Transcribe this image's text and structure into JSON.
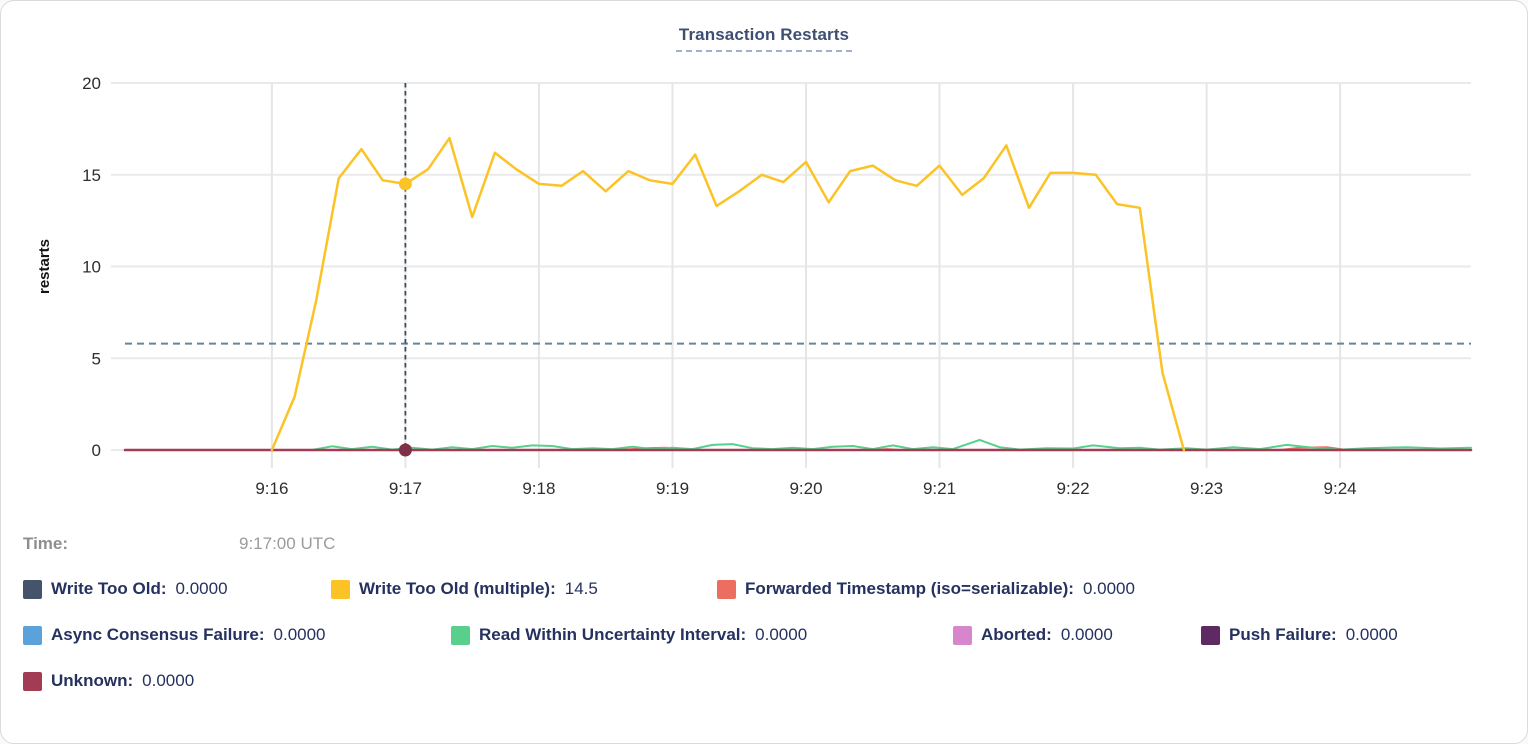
{
  "title": "Transaction Restarts",
  "tooltip": {
    "time_label": "Time:",
    "time_value": "9:17:00 UTC"
  },
  "chart_data": {
    "type": "line",
    "title": "Transaction Restarts",
    "xlabel": "",
    "ylabel": "restarts",
    "ylim": [
      0,
      20
    ],
    "yticks": [
      0,
      5,
      10,
      15,
      20
    ],
    "x_range_minutes": [
      14.9,
      24.98
    ],
    "xticks": [
      {
        "t": 16,
        "label": "9:16"
      },
      {
        "t": 17,
        "label": "9:17"
      },
      {
        "t": 18,
        "label": "9:18"
      },
      {
        "t": 19,
        "label": "9:19"
      },
      {
        "t": 20,
        "label": "9:20"
      },
      {
        "t": 21,
        "label": "9:21"
      },
      {
        "t": 22,
        "label": "9:22"
      },
      {
        "t": 23,
        "label": "9:23"
      },
      {
        "t": 24,
        "label": "9:24"
      }
    ],
    "grid": true,
    "legend_position": "bottom",
    "threshold_value": 5.8,
    "crosshair": {
      "t": 17.0,
      "time_label": "9:17:00 UTC",
      "dots": [
        {
          "value": 14.5,
          "color": "#fcc326"
        },
        {
          "value": 0,
          "color": "#7c3146"
        }
      ]
    },
    "series": [
      {
        "label": "Write Too Old:",
        "value": "0.0000",
        "color": "#45536b",
        "z": 1,
        "width": 1.5,
        "points": [
          [
            14.9,
            0
          ],
          [
            24.98,
            0
          ]
        ]
      },
      {
        "label": "Write Too Old (multiple):",
        "value": "14.5",
        "color": "#fcc326",
        "z": 5,
        "width": 2.5,
        "points": [
          [
            16.0,
            0
          ],
          [
            16.17,
            2.9
          ],
          [
            16.33,
            8.1
          ],
          [
            16.5,
            14.8
          ],
          [
            16.67,
            16.4
          ],
          [
            16.83,
            14.7
          ],
          [
            17.0,
            14.5
          ],
          [
            17.17,
            15.3
          ],
          [
            17.33,
            17.0
          ],
          [
            17.5,
            12.7
          ],
          [
            17.67,
            16.2
          ],
          [
            17.83,
            15.3
          ],
          [
            18.0,
            14.5
          ],
          [
            18.17,
            14.4
          ],
          [
            18.33,
            15.2
          ],
          [
            18.5,
            14.1
          ],
          [
            18.67,
            15.2
          ],
          [
            18.83,
            14.7
          ],
          [
            19.0,
            14.5
          ],
          [
            19.17,
            16.1
          ],
          [
            19.33,
            13.3
          ],
          [
            19.5,
            14.1
          ],
          [
            19.67,
            15.0
          ],
          [
            19.83,
            14.6
          ],
          [
            20.0,
            15.7
          ],
          [
            20.17,
            13.5
          ],
          [
            20.33,
            15.2
          ],
          [
            20.5,
            15.5
          ],
          [
            20.67,
            14.7
          ],
          [
            20.83,
            14.4
          ],
          [
            21.0,
            15.5
          ],
          [
            21.17,
            13.9
          ],
          [
            21.33,
            14.8
          ],
          [
            21.5,
            16.6
          ],
          [
            21.67,
            13.2
          ],
          [
            21.83,
            15.1
          ],
          [
            22.0,
            15.1
          ],
          [
            22.17,
            15.0
          ],
          [
            22.33,
            13.4
          ],
          [
            22.5,
            13.2
          ],
          [
            22.67,
            4.2
          ],
          [
            22.83,
            0
          ]
        ]
      },
      {
        "label": "Forwarded Timestamp (iso=serializable):",
        "value": "0.0000",
        "color": "#ec6e60",
        "z": 2,
        "width": 2,
        "points": [
          [
            14.9,
            0
          ],
          [
            18.6,
            0
          ],
          [
            18.8,
            0.1
          ],
          [
            18.95,
            0.12
          ],
          [
            19.1,
            0
          ],
          [
            20.55,
            0
          ],
          [
            20.6,
            0.05
          ],
          [
            20.7,
            0
          ],
          [
            23.55,
            0
          ],
          [
            23.7,
            0.12
          ],
          [
            23.9,
            0.15
          ],
          [
            24.05,
            0
          ],
          [
            24.98,
            0
          ]
        ]
      },
      {
        "label": "Async Consensus Failure:",
        "value": "0.0000",
        "color": "#5aa2d9",
        "z": 1,
        "width": 1.5,
        "points": [
          [
            14.9,
            0
          ],
          [
            24.98,
            0
          ]
        ]
      },
      {
        "label": "Read Within Uncertainty Interval:",
        "value": "0.0000",
        "color": "#58d08c",
        "z": 3,
        "width": 2,
        "points": [
          [
            14.9,
            0
          ],
          [
            16.3,
            0
          ],
          [
            16.45,
            0.2
          ],
          [
            16.6,
            0.05
          ],
          [
            16.75,
            0.18
          ],
          [
            16.9,
            0.02
          ],
          [
            17.05,
            0.12
          ],
          [
            17.2,
            0.02
          ],
          [
            17.35,
            0.15
          ],
          [
            17.5,
            0.05
          ],
          [
            17.65,
            0.22
          ],
          [
            17.8,
            0.12
          ],
          [
            17.95,
            0.25
          ],
          [
            18.1,
            0.22
          ],
          [
            18.25,
            0.05
          ],
          [
            18.4,
            0.1
          ],
          [
            18.55,
            0.05
          ],
          [
            18.7,
            0.18
          ],
          [
            18.85,
            0.05
          ],
          [
            19.0,
            0.12
          ],
          [
            19.15,
            0.05
          ],
          [
            19.3,
            0.28
          ],
          [
            19.45,
            0.32
          ],
          [
            19.6,
            0.1
          ],
          [
            19.75,
            0.05
          ],
          [
            19.9,
            0.12
          ],
          [
            20.05,
            0.05
          ],
          [
            20.2,
            0.18
          ],
          [
            20.35,
            0.22
          ],
          [
            20.5,
            0.05
          ],
          [
            20.65,
            0.25
          ],
          [
            20.8,
            0.05
          ],
          [
            20.95,
            0.15
          ],
          [
            21.1,
            0.05
          ],
          [
            21.3,
            0.55
          ],
          [
            21.45,
            0.15
          ],
          [
            21.6,
            0.02
          ],
          [
            21.8,
            0.1
          ],
          [
            22.0,
            0.08
          ],
          [
            22.15,
            0.25
          ],
          [
            22.35,
            0.1
          ],
          [
            22.5,
            0.12
          ],
          [
            22.65,
            0.02
          ],
          [
            22.85,
            0.1
          ],
          [
            23.0,
            0.02
          ],
          [
            23.2,
            0.15
          ],
          [
            23.4,
            0.05
          ],
          [
            23.6,
            0.28
          ],
          [
            23.8,
            0.12
          ],
          [
            24.0,
            0.02
          ],
          [
            24.2,
            0.1
          ],
          [
            24.5,
            0.15
          ],
          [
            24.75,
            0.08
          ],
          [
            24.98,
            0.12
          ]
        ]
      },
      {
        "label": "Aborted:",
        "value": "0.0000",
        "color": "#d886cb",
        "z": 1,
        "width": 1.5,
        "points": [
          [
            14.9,
            0
          ],
          [
            24.98,
            0
          ]
        ]
      },
      {
        "label": "Push Failure:",
        "value": "0.0000",
        "color": "#5f2a63",
        "z": 1,
        "width": 1.5,
        "points": [
          [
            14.9,
            0
          ],
          [
            24.98,
            0
          ]
        ]
      },
      {
        "label": "Unknown:",
        "value": "0.0000",
        "color": "#a23c55",
        "z": 4,
        "width": 2.5,
        "points": [
          [
            14.9,
            0
          ],
          [
            24.98,
            0
          ]
        ]
      }
    ]
  }
}
